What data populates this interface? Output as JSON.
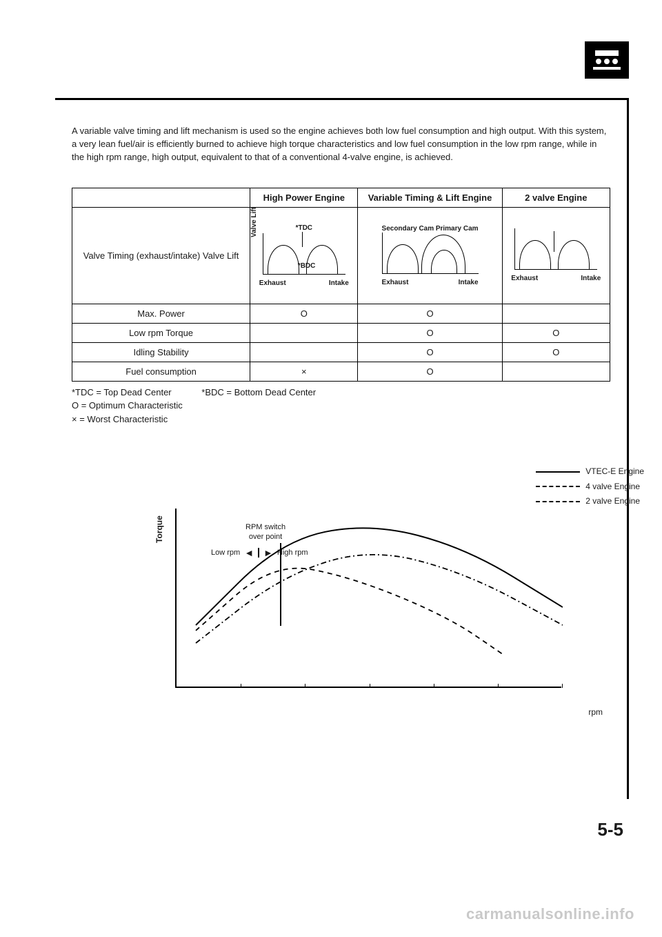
{
  "page_icon": {
    "name": "engine-ecu-icon"
  },
  "intro_text": "A variable valve timing and lift mechanism is used so the engine achieves both low fuel consumption and high output. With this system, a very lean fuel/air is efficiently burned to achieve high torque characteristics and low fuel consumption in the low rpm range, while in the high rpm range, high output, equivalent to that of a conventional 4-valve engine, is achieved.",
  "table": {
    "columns": [
      "",
      "High Power Engine",
      "Variable Timing & Lift Engine",
      "2 valve Engine"
    ],
    "row_header_1": "Valve Timing (exhaust/intake) Valve Lift",
    "diagram_high_power": {
      "ylabel": "Valve Lift",
      "top_label": "*TDC",
      "inner_label": "*BDC",
      "x_left": "Exhaust",
      "x_right": "Intake"
    },
    "diagram_variable": {
      "left_label": "Secondary Cam",
      "right_label": "Primary Cam",
      "x_left": "Exhaust",
      "x_right": "Intake"
    },
    "diagram_2valve": {
      "x_left": "Exhaust",
      "x_right": "Intake"
    },
    "rows": [
      {
        "label": "Max. Power",
        "cells": [
          "O",
          "O",
          ""
        ]
      },
      {
        "label": "Low rpm Torque",
        "cells": [
          "",
          "O",
          "O"
        ]
      },
      {
        "label": "Idling Stability",
        "cells": [
          "",
          "O",
          "O"
        ]
      },
      {
        "label": "Fuel consumption",
        "cells": [
          "×",
          "O",
          ""
        ]
      }
    ]
  },
  "footnotes": {
    "tdc": "*TDC = Top Dead Center",
    "bdc": "*BDC = Bottom Dead Center",
    "o": "O = Optimum Characteristic",
    "x": "× = Worst Characteristic"
  },
  "chart": {
    "type": "line",
    "ylabel": "Torque",
    "xlabel": "rpm",
    "legend": [
      {
        "style": "solid",
        "label": "VTEC-E Engine"
      },
      {
        "style": "dashdot",
        "label": "4 valve Engine"
      },
      {
        "style": "dashed",
        "label": "2 valve Engine"
      }
    ],
    "rpm_switch_label_1": "RPM switch",
    "rpm_switch_label_2": "over point",
    "low_label": "Low rpm",
    "high_label": "High rpm",
    "xlim": [
      0,
      6
    ],
    "ylim": [
      0,
      1
    ],
    "series": {
      "vtec": {
        "points": [
          [
            0.05,
            0.35
          ],
          [
            0.27,
            0.82
          ],
          [
            0.5,
            0.92
          ],
          [
            0.75,
            0.78
          ],
          [
            1.0,
            0.45
          ]
        ],
        "stroke": "#000",
        "dash": "none",
        "width": 2
      },
      "4valve": {
        "points": [
          [
            0.05,
            0.25
          ],
          [
            0.27,
            0.62
          ],
          [
            0.5,
            0.78
          ],
          [
            0.75,
            0.64
          ],
          [
            1.0,
            0.35
          ]
        ],
        "stroke": "#000",
        "dash": "8 4 2 4",
        "width": 1.8
      },
      "2valve": {
        "points": [
          [
            0.05,
            0.32
          ],
          [
            0.25,
            0.7
          ],
          [
            0.45,
            0.62
          ],
          [
            0.7,
            0.4
          ],
          [
            0.85,
            0.18
          ]
        ],
        "stroke": "#000",
        "dash": "7 6",
        "width": 1.8
      }
    },
    "ticks_x_count": 6,
    "background_color": "#ffffff",
    "axis_color": "#000000"
  },
  "page_number": "5-5",
  "watermark": "carmanualsonline.info"
}
